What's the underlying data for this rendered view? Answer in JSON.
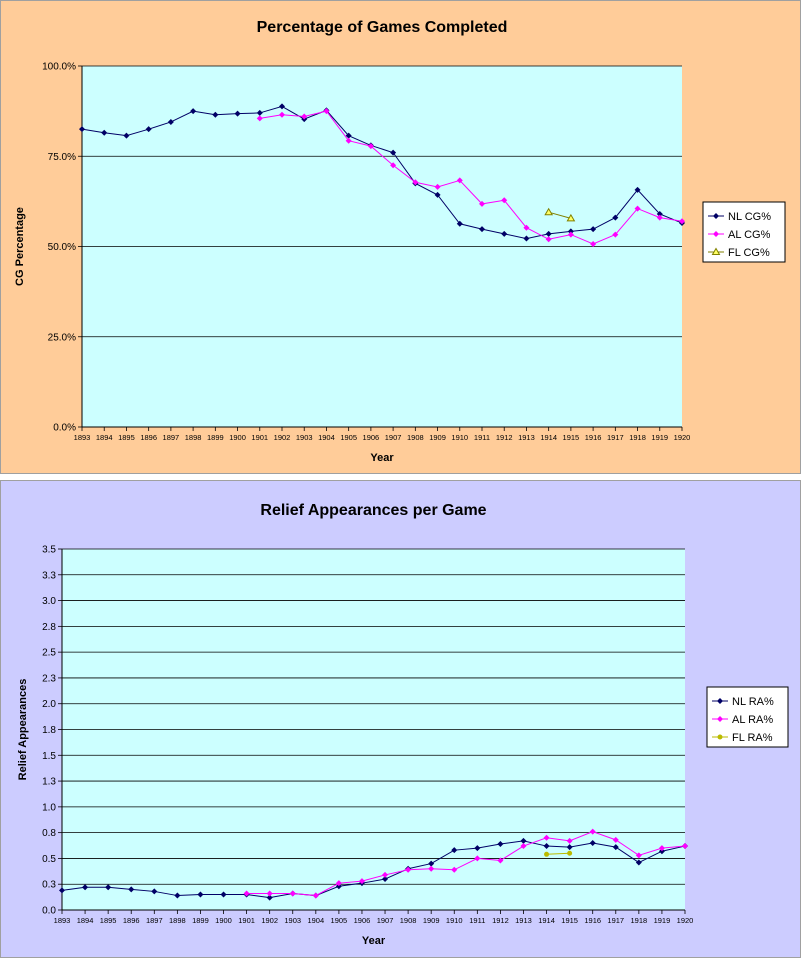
{
  "chart_data": [
    {
      "type": "line",
      "title": "Percentage of Games Completed",
      "xlabel": "Year",
      "ylabel": "CG Percentage",
      "ylim": [
        0,
        100
      ],
      "yticks": [
        "0.0%",
        "25.0%",
        "50.0%",
        "75.0%",
        "100.0%"
      ],
      "ytick_values": [
        0,
        25,
        50,
        75,
        100
      ],
      "grid": true,
      "legend_position": "right",
      "background": "#ffcc99",
      "plot_background": "#ccffff",
      "x": [
        "1893",
        "1894",
        "1895",
        "1896",
        "1897",
        "1898",
        "1899",
        "1900",
        "1901",
        "1902",
        "1903",
        "1904",
        "1905",
        "1906",
        "1907",
        "1908",
        "1909",
        "1910",
        "1911",
        "1912",
        "1913",
        "1914",
        "1915",
        "1916",
        "1917",
        "1918",
        "1919",
        "1920"
      ],
      "series": [
        {
          "name": "NL CG%",
          "color": "#000066",
          "marker": "diamond",
          "values": [
            82.5,
            81.5,
            80.7,
            82.5,
            84.5,
            87.5,
            86.5,
            86.8,
            87.0,
            88.8,
            85.3,
            87.7,
            80.7,
            78.0,
            76.0,
            67.5,
            64.3,
            56.3,
            54.8,
            53.5,
            52.2,
            53.5,
            54.2,
            54.8,
            58.0,
            65.7,
            59.0,
            56.5
          ]
        },
        {
          "name": "AL CG%",
          "color": "#ff00ff",
          "marker": "square",
          "values": [
            null,
            null,
            null,
            null,
            null,
            null,
            null,
            null,
            85.5,
            86.5,
            86.0,
            87.5,
            79.3,
            77.8,
            72.5,
            67.8,
            66.5,
            68.3,
            61.8,
            62.8,
            55.2,
            52.0,
            53.3,
            50.7,
            53.3,
            60.5,
            58.0,
            57.0
          ]
        },
        {
          "name": "FL CG%",
          "color": "#808000",
          "marker": "triangle",
          "values": [
            null,
            null,
            null,
            null,
            null,
            null,
            null,
            null,
            null,
            null,
            null,
            null,
            null,
            null,
            null,
            null,
            null,
            null,
            null,
            null,
            null,
            59.5,
            57.8,
            null,
            null,
            null,
            null,
            null
          ]
        }
      ]
    },
    {
      "type": "line",
      "title": "Relief Appearances per Game",
      "xlabel": "Year",
      "ylabel": "Relief Appearances",
      "ylim": [
        0,
        3.5
      ],
      "yticks": [
        "0.0",
        "0.3",
        "0.5",
        "0.8",
        "1.0",
        "1.3",
        "1.5",
        "1.8",
        "2.0",
        "2.3",
        "2.5",
        "2.8",
        "3.0",
        "3.3",
        "3.5"
      ],
      "ytick_values": [
        0,
        0.25,
        0.5,
        0.75,
        1.0,
        1.25,
        1.5,
        1.75,
        2.0,
        2.25,
        2.5,
        2.75,
        3.0,
        3.25,
        3.5
      ],
      "grid": true,
      "legend_position": "right",
      "background": "#ccccff",
      "plot_background": "#ccffff",
      "x": [
        "1893",
        "1894",
        "1895",
        "1896",
        "1897",
        "1898",
        "1899",
        "1900",
        "1901",
        "1902",
        "1903",
        "1904",
        "1905",
        "1906",
        "1907",
        "1908",
        "1909",
        "1910",
        "1911",
        "1912",
        "1913",
        "1914",
        "1915",
        "1916",
        "1917",
        "1918",
        "1919",
        "1920"
      ],
      "series": [
        {
          "name": "NL RA%",
          "color": "#000066",
          "marker": "diamond",
          "values": [
            0.19,
            0.22,
            0.22,
            0.2,
            0.18,
            0.14,
            0.15,
            0.15,
            0.15,
            0.12,
            0.16,
            0.14,
            0.23,
            0.26,
            0.3,
            0.4,
            0.45,
            0.58,
            0.6,
            0.64,
            0.67,
            0.62,
            0.61,
            0.65,
            0.61,
            0.46,
            0.57,
            0.62
          ]
        },
        {
          "name": "AL RA%",
          "color": "#ff00ff",
          "marker": "square",
          "values": [
            null,
            null,
            null,
            null,
            null,
            null,
            null,
            null,
            0.16,
            0.16,
            0.16,
            0.14,
            0.26,
            0.28,
            0.34,
            0.39,
            0.4,
            0.39,
            0.5,
            0.48,
            0.62,
            0.7,
            0.67,
            0.76,
            0.68,
            0.53,
            0.6,
            0.62
          ]
        },
        {
          "name": "FL RA%",
          "color": "#bbbb00",
          "marker": "circle",
          "values": [
            null,
            null,
            null,
            null,
            null,
            null,
            null,
            null,
            null,
            null,
            null,
            null,
            null,
            null,
            null,
            null,
            null,
            null,
            null,
            null,
            null,
            0.54,
            0.55,
            null,
            null,
            null,
            null,
            null
          ]
        }
      ]
    }
  ]
}
